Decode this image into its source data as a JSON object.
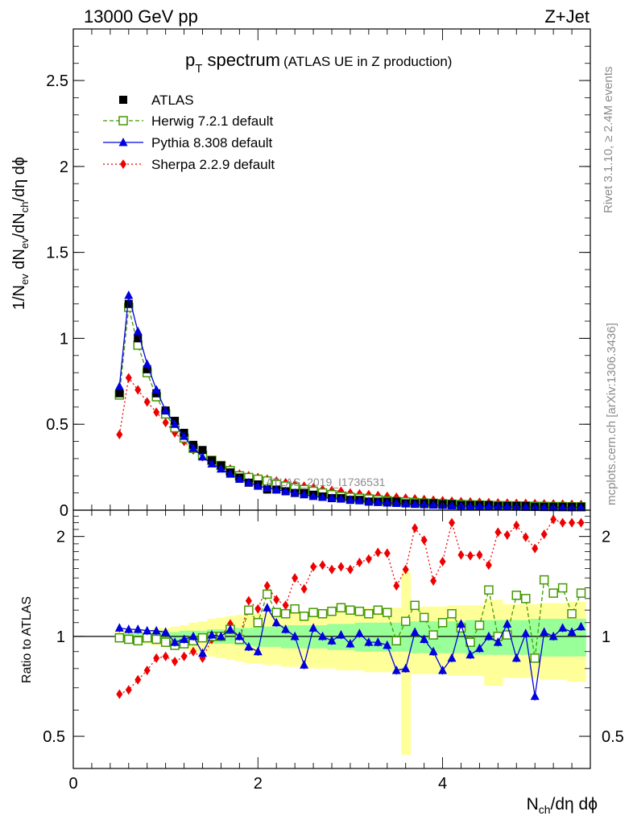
{
  "header": {
    "left": "13000 GeV pp",
    "right": "Z+Jet"
  },
  "title": {
    "main": "p",
    "sub": "T",
    "rest": " spectrum",
    "note": "(ATLAS UE in Z production)"
  },
  "side_labels": {
    "rivet": "Rivet 3.1.10, ≥ 2.4M events",
    "mcplots": "mcplots.cern.ch [arXiv:1306.3436]"
  },
  "watermark": "ATLAS_2019_I1736531",
  "axes": {
    "y_main": {
      "p1": "1/N",
      "s1": "ev",
      "p2": " dN",
      "s2": "ev",
      "p3": "/dN",
      "s3": "ch",
      "p4": "/dη dϕ"
    },
    "y_ratio": "Ratio to ATLAS",
    "x": {
      "p1": "N",
      "s1": "ch",
      "p2": "/dη dϕ"
    }
  },
  "legend": [
    {
      "name": "ATLAS"
    },
    {
      "name": "Herwig 7.2.1 default"
    },
    {
      "name": "Pythia 8.308 default"
    },
    {
      "name": "Sherpa 2.2.9 default"
    }
  ],
  "colors": {
    "atlas": "#000000",
    "herwig": "#449900",
    "pythia": "#0000dd",
    "sherpa": "#ee0000",
    "band_yellow": "#ffff99",
    "band_green": "#99ff99"
  },
  "chart_data": [
    {
      "type": "scatter",
      "panel": "main",
      "x": [
        0.5,
        0.6,
        0.7,
        0.8,
        0.9,
        1.0,
        1.1,
        1.2,
        1.3,
        1.4,
        1.5,
        1.6,
        1.7,
        1.8,
        1.9,
        2.0,
        2.1,
        2.2,
        2.3,
        2.4,
        2.5,
        2.6,
        2.7,
        2.8,
        2.9,
        3.0,
        3.1,
        3.2,
        3.3,
        3.4,
        3.5,
        3.6,
        3.7,
        3.8,
        3.9,
        4.0,
        4.1,
        4.2,
        4.3,
        4.4,
        4.5,
        4.6,
        4.7,
        4.8,
        4.9,
        5.0,
        5.1,
        5.2,
        5.3,
        5.4,
        5.5
      ],
      "series": [
        {
          "name": "ATLAS",
          "style": "marker-square",
          "values": [
            0.68,
            1.2,
            1.0,
            0.82,
            0.68,
            0.58,
            0.52,
            0.45,
            0.38,
            0.35,
            0.29,
            0.26,
            0.22,
            0.19,
            0.16,
            0.15,
            0.12,
            0.12,
            0.11,
            0.1,
            0.1,
            0.09,
            0.08,
            0.07,
            0.07,
            0.06,
            0.06,
            0.05,
            0.05,
            0.05,
            0.05,
            0.04,
            0.04,
            0.04,
            0.04,
            0.035,
            0.035,
            0.03,
            0.03,
            0.03,
            0.03,
            0.025,
            0.025,
            0.025,
            0.025,
            0.02,
            0.02,
            0.02,
            0.02,
            0.02,
            0.02
          ]
        },
        {
          "name": "Herwig 7.2.1 default",
          "style": "dashed-open-square",
          "values": [
            0.67,
            1.18,
            0.96,
            0.8,
            0.66,
            0.56,
            0.48,
            0.42,
            0.36,
            0.32,
            0.29,
            0.26,
            0.23,
            0.2,
            0.19,
            0.18,
            0.17,
            0.15,
            0.14,
            0.13,
            0.12,
            0.11,
            0.1,
            0.09,
            0.08,
            0.075,
            0.07,
            0.065,
            0.06,
            0.055,
            0.05,
            0.048,
            0.045,
            0.042,
            0.04,
            0.038,
            0.035,
            0.033,
            0.031,
            0.03,
            0.028,
            0.027,
            0.026,
            0.025,
            0.024,
            0.023,
            0.022,
            0.021,
            0.021,
            0.02,
            0.02
          ]
        },
        {
          "name": "Pythia 8.308 default",
          "style": "solid-triangle",
          "values": [
            0.72,
            1.25,
            1.04,
            0.85,
            0.7,
            0.58,
            0.5,
            0.43,
            0.36,
            0.31,
            0.27,
            0.24,
            0.21,
            0.18,
            0.16,
            0.14,
            0.13,
            0.12,
            0.11,
            0.1,
            0.09,
            0.08,
            0.075,
            0.07,
            0.065,
            0.06,
            0.055,
            0.05,
            0.045,
            0.042,
            0.04,
            0.037,
            0.034,
            0.032,
            0.03,
            0.028,
            0.026,
            0.024,
            0.023,
            0.022,
            0.021,
            0.02,
            0.019,
            0.018,
            0.017,
            0.017,
            0.016,
            0.016,
            0.015,
            0.015,
            0.015
          ]
        },
        {
          "name": "Sherpa 2.2.9 default",
          "style": "dotted-diamond",
          "values": [
            0.44,
            0.77,
            0.7,
            0.63,
            0.57,
            0.51,
            0.45,
            0.4,
            0.35,
            0.31,
            0.28,
            0.26,
            0.24,
            0.21,
            0.2,
            0.19,
            0.18,
            0.17,
            0.16,
            0.15,
            0.14,
            0.13,
            0.12,
            0.115,
            0.11,
            0.1,
            0.095,
            0.09,
            0.085,
            0.08,
            0.075,
            0.07,
            0.066,
            0.062,
            0.058,
            0.055,
            0.052,
            0.05,
            0.048,
            0.046,
            0.044,
            0.042,
            0.041,
            0.04,
            0.039,
            0.038,
            0.037,
            0.036,
            0.035,
            0.034,
            0.033
          ]
        }
      ],
      "xlim": [
        0,
        5.6
      ],
      "ylim": [
        0,
        2.8
      ],
      "y_ticks": [
        0,
        0.5,
        1,
        1.5,
        2,
        2.5
      ],
      "y_tick_labels": [
        "0",
        "0.5",
        "1",
        "1.5",
        "2",
        "2.5"
      ],
      "legend_position": "top-left"
    },
    {
      "type": "scatter",
      "panel": "ratio",
      "x": [
        0.5,
        0.6,
        0.7,
        0.8,
        0.9,
        1.0,
        1.1,
        1.2,
        1.3,
        1.4,
        1.5,
        1.6,
        1.7,
        1.8,
        1.9,
        2.0,
        2.1,
        2.2,
        2.3,
        2.4,
        2.5,
        2.6,
        2.7,
        2.8,
        2.9,
        3.0,
        3.1,
        3.2,
        3.3,
        3.4,
        3.5,
        3.6,
        3.7,
        3.8,
        3.9,
        4.0,
        4.1,
        4.2,
        4.3,
        4.4,
        4.5,
        4.6,
        4.7,
        4.8,
        4.9,
        5.0,
        5.1,
        5.2,
        5.3,
        5.4,
        5.5
      ],
      "series": [
        {
          "name": "Herwig 7.2.1 default",
          "style": "dashed-open-square",
          "values": [
            0.99,
            0.98,
            0.97,
            0.99,
            0.98,
            0.96,
            0.94,
            0.95,
            0.97,
            0.99,
            1.0,
            1.0,
            1.05,
            0.98,
            1.2,
            1.1,
            1.34,
            1.18,
            1.17,
            1.21,
            1.15,
            1.18,
            1.17,
            1.19,
            1.22,
            1.2,
            1.19,
            1.17,
            1.2,
            1.18,
            0.97,
            1.11,
            1.24,
            1.14,
            1.01,
            1.1,
            1.17,
            1.06,
            0.96,
            1.08,
            1.38,
            1.0,
            1.01,
            1.33,
            1.3,
            0.86,
            1.48,
            1.35,
            1.4,
            1.17,
            1.35
          ]
        },
        {
          "name": "Pythia 8.308 default",
          "style": "solid-triangle",
          "values": [
            1.06,
            1.05,
            1.05,
            1.04,
            1.04,
            1.03,
            0.96,
            0.98,
            1.0,
            0.89,
            1.01,
            1.0,
            1.05,
            1.0,
            0.93,
            0.9,
            1.22,
            1.1,
            1.05,
            1.0,
            0.82,
            1.06,
            1.0,
            0.97,
            1.01,
            0.95,
            1.02,
            0.96,
            0.96,
            0.94,
            0.79,
            0.8,
            1.03,
            0.98,
            0.9,
            0.79,
            0.86,
            1.09,
            0.88,
            0.92,
            1.0,
            0.96,
            1.09,
            0.86,
            1.02,
            0.66,
            1.03,
            1.0,
            1.06,
            1.03,
            1.07
          ]
        },
        {
          "name": "Sherpa 2.2.9 default",
          "style": "dotted-diamond",
          "values": [
            0.67,
            0.69,
            0.74,
            0.79,
            0.86,
            0.87,
            0.84,
            0.87,
            0.9,
            0.86,
            0.98,
            1.0,
            1.09,
            0.98,
            1.28,
            1.21,
            1.42,
            1.29,
            1.24,
            1.5,
            1.39,
            1.62,
            1.64,
            1.59,
            1.62,
            1.59,
            1.67,
            1.71,
            1.79,
            1.78,
            1.42,
            1.59,
            2.12,
            1.95,
            1.47,
            1.68,
            2.2,
            1.76,
            1.75,
            1.76,
            1.64,
            2.06,
            2.02,
            2.16,
            1.99,
            1.84,
            2.03,
            2.25,
            2.2,
            2.2,
            2.2
          ]
        }
      ],
      "band_yellow_halfwidth": [
        0.04,
        0.04,
        0.05,
        0.05,
        0.06,
        0.06,
        0.07,
        0.08,
        0.1,
        0.11,
        0.13,
        0.14,
        0.15,
        0.16,
        0.17,
        0.17,
        0.18,
        0.18,
        0.19,
        0.19,
        0.19,
        0.2,
        0.2,
        0.2,
        0.21,
        0.21,
        0.21,
        0.22,
        0.22,
        0.22,
        0.22,
        0.56,
        0.23,
        0.23,
        0.23,
        0.23,
        0.24,
        0.24,
        0.24,
        0.24,
        0.29,
        0.29,
        0.25,
        0.25,
        0.25,
        0.25,
        0.26,
        0.26,
        0.26,
        0.27,
        0.27
      ],
      "band_green_halfwidth": [
        0.02,
        0.02,
        0.02,
        0.02,
        0.03,
        0.03,
        0.03,
        0.04,
        0.04,
        0.04,
        0.05,
        0.05,
        0.05,
        0.06,
        0.06,
        0.07,
        0.07,
        0.07,
        0.08,
        0.08,
        0.08,
        0.08,
        0.08,
        0.09,
        0.09,
        0.09,
        0.1,
        0.1,
        0.1,
        0.1,
        0.1,
        0.1,
        0.11,
        0.11,
        0.11,
        0.11,
        0.11,
        0.11,
        0.12,
        0.12,
        0.12,
        0.12,
        0.12,
        0.12,
        0.12,
        0.13,
        0.13,
        0.13,
        0.13,
        0.13,
        0.13
      ],
      "xlim": [
        0,
        5.6
      ],
      "ylim": [
        0.4,
        2.4
      ],
      "y_ticks": [
        0.5,
        1,
        2
      ],
      "y_tick_labels": [
        "0.5",
        "1",
        "2"
      ],
      "x_ticks": [
        0,
        2,
        4
      ],
      "x_tick_labels": [
        "0",
        "2",
        "4"
      ]
    }
  ]
}
